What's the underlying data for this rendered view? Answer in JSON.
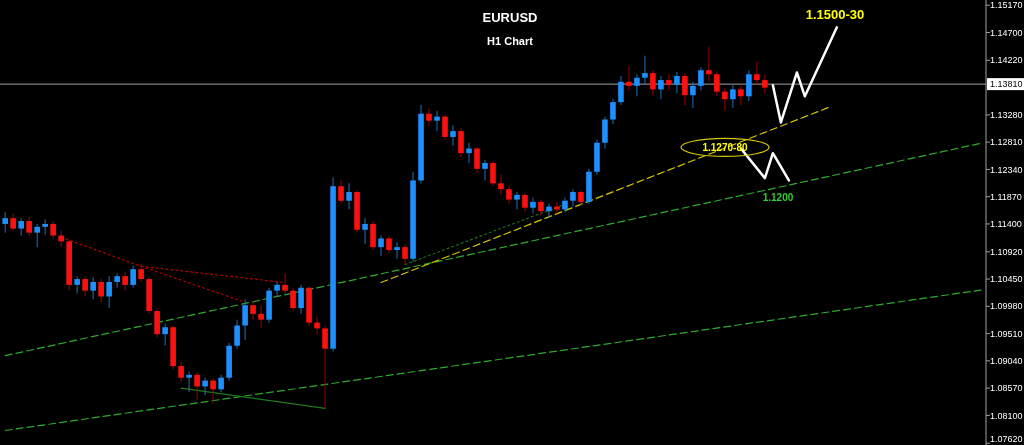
{
  "chart_data": {
    "type": "candlestick",
    "title": "EURUSD",
    "subtitle": "H1 Chart",
    "tick_labels": "y",
    "categories": [
      null,
      null,
      null,
      null,
      null,
      null,
      null,
      null,
      null,
      null,
      null,
      null,
      null,
      null,
      null,
      null,
      null,
      null,
      null,
      null,
      null,
      null,
      null,
      null,
      null,
      null,
      null,
      null,
      null,
      null,
      null,
      null,
      null,
      null,
      null,
      null,
      null,
      null,
      null,
      null,
      null,
      null,
      null,
      null,
      null,
      null,
      null,
      null,
      null,
      null,
      null,
      null,
      null,
      null,
      null,
      null,
      null,
      null,
      null,
      null,
      null,
      null,
      null,
      null,
      null,
      null,
      null,
      null,
      null,
      null,
      null,
      null,
      null,
      null,
      null,
      null,
      null,
      null,
      null,
      null,
      null,
      null,
      null,
      null,
      null,
      null,
      null,
      null,
      null,
      null,
      null,
      null,
      null,
      null,
      null,
      null,
      null,
      null,
      null,
      null,
      null,
      null,
      null,
      null,
      null,
      null,
      null,
      null,
      null,
      null,
      null,
      null,
      null,
      null,
      null,
      null,
      null,
      null,
      null,
      null,
      null,
      null,
      null
    ],
    "ohlc": [
      [
        1.114,
        1.116,
        1.1125,
        1.115
      ],
      [
        1.115,
        1.1158,
        1.1128,
        1.1132
      ],
      [
        1.1132,
        1.115,
        1.112,
        1.1145
      ],
      [
        1.1145,
        1.1152,
        1.1118,
        1.1125
      ],
      [
        1.1125,
        1.114,
        1.11,
        1.1135
      ],
      [
        1.1135,
        1.1148,
        1.1122,
        1.114
      ],
      [
        1.114,
        1.1145,
        1.1115,
        1.112
      ],
      [
        1.112,
        1.1128,
        1.11,
        1.111
      ],
      [
        1.111,
        1.1112,
        1.1025,
        1.1035
      ],
      [
        1.1035,
        1.105,
        1.102,
        1.1045
      ],
      [
        1.1045,
        1.105,
        1.1015,
        1.1025
      ],
      [
        1.1025,
        1.1048,
        1.101,
        1.104
      ],
      [
        1.104,
        1.1045,
        1.1005,
        1.1015
      ],
      [
        1.1015,
        1.105,
        1.0995,
        1.104
      ],
      [
        1.104,
        1.1055,
        1.103,
        1.105
      ],
      [
        1.105,
        1.1058,
        1.1025,
        1.1035
      ],
      [
        1.1035,
        1.1068,
        1.103,
        1.1062
      ],
      [
        1.1062,
        1.1072,
        1.104,
        1.1045
      ],
      [
        1.1045,
        1.1048,
        1.0985,
        1.099
      ],
      [
        1.099,
        1.0995,
        1.0945,
        1.095
      ],
      [
        1.095,
        1.0968,
        1.093,
        1.0962
      ],
      [
        1.0962,
        1.0965,
        1.089,
        1.0895
      ],
      [
        1.0895,
        1.0902,
        1.0868,
        1.0875
      ],
      [
        1.0875,
        1.0885,
        1.085,
        1.088
      ],
      [
        1.088,
        1.0884,
        1.0836,
        1.086
      ],
      [
        1.086,
        1.0875,
        1.0845,
        1.087
      ],
      [
        1.087,
        1.0874,
        1.083,
        1.0855
      ],
      [
        1.0855,
        1.088,
        1.085,
        1.0875
      ],
      [
        1.0875,
        1.0935,
        1.087,
        1.093
      ],
      [
        1.093,
        1.0975,
        1.0925,
        1.0965
      ],
      [
        1.0965,
        1.101,
        1.094,
        1.1
      ],
      [
        1.1,
        1.1008,
        1.0975,
        1.0985
      ],
      [
        1.0985,
        1.1,
        1.096,
        1.0975
      ],
      [
        1.0975,
        1.103,
        1.097,
        1.1025
      ],
      [
        1.1025,
        1.104,
        1.1015,
        1.1035
      ],
      [
        1.1035,
        1.1055,
        1.102,
        1.1025
      ],
      [
        1.1025,
        1.103,
        1.099,
        1.0995
      ],
      [
        1.0995,
        1.1035,
        1.0985,
        1.103
      ],
      [
        1.103,
        1.1032,
        1.0965,
        1.097
      ],
      [
        1.097,
        1.098,
        1.095,
        1.096
      ],
      [
        1.096,
        1.0965,
        1.0822,
        1.0925
      ],
      [
        1.0925,
        1.122,
        1.092,
        1.1205
      ],
      [
        1.1205,
        1.1215,
        1.1175,
        1.118
      ],
      [
        1.118,
        1.121,
        1.1165,
        1.1195
      ],
      [
        1.1195,
        1.1198,
        1.1125,
        1.113
      ],
      [
        1.113,
        1.115,
        1.1105,
        1.114
      ],
      [
        1.114,
        1.1145,
        1.1095,
        1.11
      ],
      [
        1.11,
        1.112,
        1.1085,
        1.1115
      ],
      [
        1.1115,
        1.112,
        1.109,
        1.1095
      ],
      [
        1.1095,
        1.1108,
        1.108,
        1.11
      ],
      [
        1.11,
        1.1105,
        1.107,
        1.108
      ],
      [
        1.108,
        1.123,
        1.1075,
        1.1215
      ],
      [
        1.1215,
        1.1345,
        1.121,
        1.133
      ],
      [
        1.133,
        1.134,
        1.131,
        1.1318
      ],
      [
        1.1318,
        1.1335,
        1.13,
        1.1325
      ],
      [
        1.1325,
        1.1328,
        1.1285,
        1.129
      ],
      [
        1.129,
        1.131,
        1.1275,
        1.13
      ],
      [
        1.13,
        1.1305,
        1.1255,
        1.1262
      ],
      [
        1.1262,
        1.128,
        1.1245,
        1.127
      ],
      [
        1.127,
        1.1272,
        1.1228,
        1.1235
      ],
      [
        1.1235,
        1.125,
        1.1215,
        1.1245
      ],
      [
        1.1245,
        1.1248,
        1.1205,
        1.121
      ],
      [
        1.121,
        1.1225,
        1.119,
        1.12
      ],
      [
        1.12,
        1.1205,
        1.1175,
        1.1182
      ],
      [
        1.1182,
        1.1195,
        1.1165,
        1.119
      ],
      [
        1.119,
        1.1193,
        1.116,
        1.1168
      ],
      [
        1.1168,
        1.1185,
        1.1158,
        1.1178
      ],
      [
        1.1178,
        1.1182,
        1.1155,
        1.1162
      ],
      [
        1.1162,
        1.1175,
        1.115,
        1.117
      ],
      [
        1.117,
        1.1178,
        1.1158,
        1.1165
      ],
      [
        1.1165,
        1.1185,
        1.116,
        1.118
      ],
      [
        1.118,
        1.12,
        1.117,
        1.1195
      ],
      [
        1.1195,
        1.1198,
        1.1172,
        1.1178
      ],
      [
        1.1178,
        1.1235,
        1.1175,
        1.123
      ],
      [
        1.123,
        1.1285,
        1.1225,
        1.128
      ],
      [
        1.128,
        1.1325,
        1.127,
        1.132
      ],
      [
        1.132,
        1.1355,
        1.1312,
        1.135
      ],
      [
        1.135,
        1.1395,
        1.1345,
        1.1385
      ],
      [
        1.1385,
        1.1412,
        1.137,
        1.1378
      ],
      [
        1.1378,
        1.1398,
        1.136,
        1.1392
      ],
      [
        1.1392,
        1.143,
        1.138,
        1.14
      ],
      [
        1.14,
        1.1405,
        1.1362,
        1.1372
      ],
      [
        1.1372,
        1.1395,
        1.1355,
        1.1388
      ],
      [
        1.1388,
        1.1398,
        1.137,
        1.138
      ],
      [
        1.138,
        1.1402,
        1.1365,
        1.1395
      ],
      [
        1.1395,
        1.14,
        1.1345,
        1.1362
      ],
      [
        1.1362,
        1.1385,
        1.134,
        1.1378
      ],
      [
        1.1378,
        1.141,
        1.137,
        1.1405
      ],
      [
        1.1405,
        1.1445,
        1.1385,
        1.1398
      ],
      [
        1.1398,
        1.1402,
        1.136,
        1.1368
      ],
      [
        1.1368,
        1.1375,
        1.1335,
        1.1355
      ],
      [
        1.1355,
        1.138,
        1.134,
        1.1372
      ],
      [
        1.1372,
        1.1378,
        1.1345,
        1.136
      ],
      [
        1.136,
        1.1405,
        1.1352,
        1.1398
      ],
      [
        1.1398,
        1.142,
        1.138,
        1.1388
      ],
      [
        1.1388,
        1.1398,
        1.1365,
        1.1375
      ],
      null,
      null,
      null,
      null,
      null,
      null,
      null,
      null,
      null,
      null,
      null,
      null,
      null,
      null,
      null,
      null,
      null,
      null,
      null,
      null,
      null,
      null,
      null,
      null,
      null,
      null,
      null
    ],
    "series": [
      {
        "type": "line",
        "color": "#2eaa2e",
        "line_style": "dashed",
        "values": [
          1.0913,
          null,
          null,
          null,
          null,
          null,
          null,
          null,
          null,
          null,
          null,
          null,
          null,
          null,
          null,
          null,
          null,
          null,
          null,
          null,
          null,
          null,
          null,
          null,
          null,
          null,
          null,
          null,
          null,
          null,
          null,
          null,
          null,
          null,
          null,
          null,
          null,
          null,
          null,
          null,
          null,
          null,
          null,
          null,
          null,
          null,
          null,
          null,
          null,
          null,
          null,
          null,
          null,
          null,
          null,
          null,
          null,
          null,
          null,
          null,
          null,
          null,
          null,
          null,
          null,
          null,
          null,
          null,
          null,
          null,
          null,
          null,
          null,
          null,
          null,
          null,
          null,
          null,
          null,
          null,
          null,
          null,
          null,
          null,
          null,
          null,
          null,
          null,
          null,
          null,
          null,
          null,
          null,
          null,
          null,
          null,
          null,
          null,
          null,
          null,
          null,
          null,
          null,
          null,
          null,
          null,
          null,
          null,
          null,
          null,
          null,
          null,
          null,
          null,
          null,
          null,
          null,
          null,
          null,
          null,
          null,
          null,
          1.1279
        ]
      },
      {
        "type": "line",
        "color": "#2eaa2e",
        "line_style": "dashed",
        "values": [
          1.0784,
          null,
          null,
          null,
          null,
          null,
          null,
          null,
          null,
          null,
          null,
          null,
          null,
          null,
          null,
          null,
          null,
          null,
          null,
          null,
          null,
          null,
          null,
          null,
          null,
          null,
          null,
          null,
          null,
          null,
          null,
          null,
          null,
          null,
          null,
          null,
          null,
          null,
          null,
          null,
          null,
          null,
          null,
          null,
          null,
          null,
          null,
          null,
          null,
          null,
          null,
          null,
          null,
          null,
          null,
          null,
          null,
          null,
          null,
          null,
          null,
          null,
          null,
          null,
          null,
          null,
          null,
          null,
          null,
          null,
          null,
          null,
          null,
          null,
          null,
          null,
          null,
          null,
          null,
          null,
          null,
          null,
          null,
          null,
          null,
          null,
          null,
          null,
          null,
          null,
          null,
          null,
          null,
          null,
          null,
          null,
          null,
          null,
          null,
          null,
          null,
          null,
          null,
          null,
          null,
          null,
          null,
          null,
          null,
          null,
          null,
          null,
          null,
          null,
          null,
          null,
          null,
          null,
          null,
          null,
          null,
          null,
          1.1026
        ]
      },
      {
        "type": "line",
        "color": "#d8c800",
        "line_style": "dashed",
        "values": [
          null,
          null,
          null,
          null,
          null,
          null,
          null,
          null,
          null,
          null,
          null,
          null,
          null,
          null,
          null,
          null,
          null,
          null,
          null,
          null,
          null,
          null,
          null,
          null,
          null,
          null,
          null,
          null,
          null,
          null,
          null,
          null,
          null,
          null,
          null,
          null,
          null,
          null,
          null,
          null,
          null,
          null,
          null,
          null,
          null,
          null,
          null,
          1.1039,
          null,
          null,
          null,
          null,
          null,
          null,
          null,
          null,
          null,
          null,
          null,
          null,
          null,
          null,
          null,
          null,
          null,
          null,
          null,
          null,
          null,
          null,
          null,
          null,
          null,
          null,
          null,
          null,
          null,
          null,
          null,
          null,
          null,
          null,
          null,
          null,
          null,
          null,
          null,
          null,
          null,
          null,
          null,
          null,
          null,
          null,
          null,
          null,
          null,
          null,
          null,
          null,
          null,
          null,
          null,
          1.1341,
          null,
          null,
          null,
          null,
          null,
          null,
          null,
          null,
          null,
          null,
          null,
          null,
          null,
          null,
          null,
          null,
          null,
          null,
          null
        ]
      },
      {
        "type": "line",
        "color": "#1f6a1f",
        "line_style": "dotted",
        "values": [
          null,
          null,
          null,
          null,
          null,
          null,
          null,
          null,
          null,
          null,
          null,
          null,
          null,
          null,
          null,
          null,
          null,
          null,
          null,
          null,
          null,
          null,
          null,
          null,
          null,
          null,
          null,
          null,
          null,
          null,
          null,
          null,
          null,
          null,
          null,
          null,
          null,
          null,
          null,
          null,
          null,
          null,
          null,
          null,
          null,
          null,
          null,
          null,
          null,
          null,
          1.107,
          null,
          null,
          null,
          null,
          null,
          null,
          null,
          null,
          null,
          null,
          null,
          null,
          null,
          null,
          null,
          null,
          null,
          null,
          null,
          1.1174,
          null,
          null,
          null,
          null,
          null,
          null,
          null,
          null,
          null,
          null,
          null,
          null,
          null,
          null,
          null,
          null,
          null,
          null,
          null,
          null,
          null,
          null,
          null,
          null,
          null,
          null,
          null,
          null,
          null,
          null,
          null,
          null,
          null,
          null,
          null,
          null,
          null,
          null,
          null,
          null,
          null,
          null,
          null,
          null,
          null,
          null,
          null,
          null,
          null,
          null,
          null,
          null
        ]
      },
      {
        "type": "line",
        "color": "#b00000",
        "line_style": "dotted",
        "values": [
          null,
          null,
          null,
          null,
          null,
          null,
          null,
          1.1117,
          null,
          null,
          null,
          null,
          null,
          null,
          null,
          null,
          null,
          1.1067,
          null,
          null,
          null,
          null,
          null,
          null,
          null,
          null,
          null,
          null,
          null,
          null,
          null,
          null,
          null,
          null,
          null,
          1.1039,
          null,
          null,
          null,
          null,
          null,
          null,
          null,
          null,
          null,
          null,
          null,
          null,
          null,
          null,
          null,
          null,
          null,
          null,
          null,
          null,
          null,
          null,
          null,
          null,
          null,
          null,
          null,
          null,
          null,
          null,
          null,
          null,
          null,
          null,
          null,
          null,
          null,
          null,
          null,
          null,
          null,
          null,
          null,
          null,
          null,
          null,
          null,
          null,
          null,
          null,
          null,
          null,
          null,
          null,
          null,
          null,
          null,
          null,
          null,
          null,
          null,
          null,
          null,
          null,
          null,
          null,
          null,
          null,
          null,
          null,
          null,
          null,
          null,
          null,
          null,
          null,
          null,
          null,
          null,
          null,
          null,
          null,
          null,
          null,
          null,
          null,
          null
        ]
      },
      {
        "type": "line",
        "color": "#b00000",
        "line_style": "dotted",
        "values": [
          null,
          null,
          null,
          null,
          null,
          null,
          null,
          null,
          null,
          null,
          null,
          null,
          null,
          null,
          null,
          null,
          null,
          1.1067,
          null,
          null,
          null,
          null,
          null,
          null,
          null,
          null,
          null,
          null,
          null,
          null,
          1.1005,
          null,
          null,
          null,
          null,
          null,
          null,
          null,
          null,
          null,
          null,
          null,
          null,
          null,
          null,
          null,
          null,
          null,
          null,
          null,
          null,
          null,
          null,
          null,
          null,
          null,
          null,
          null,
          null,
          null,
          null,
          null,
          null,
          null,
          null,
          null,
          null,
          null,
          null,
          null,
          null,
          null,
          null,
          null,
          null,
          null,
          null,
          null,
          null,
          null,
          null,
          null,
          null,
          null,
          null,
          null,
          null,
          null,
          null,
          null,
          null,
          null,
          null,
          null,
          null,
          null,
          null,
          null,
          null,
          null,
          null,
          null,
          null,
          null,
          null,
          null,
          null,
          null,
          null,
          null,
          null,
          null,
          null,
          null,
          null,
          null,
          null,
          null,
          null,
          null,
          null,
          null,
          null
        ]
      },
      {
        "type": "line",
        "color": "#1f7a1f",
        "line_style": "solid",
        "values": [
          null,
          null,
          null,
          null,
          null,
          null,
          null,
          null,
          null,
          null,
          null,
          null,
          null,
          null,
          null,
          null,
          null,
          null,
          null,
          null,
          null,
          null,
          1.0857,
          null,
          null,
          null,
          null,
          null,
          null,
          null,
          null,
          null,
          null,
          null,
          null,
          null,
          null,
          null,
          null,
          null,
          1.0822,
          null,
          null,
          null,
          null,
          null,
          null,
          null,
          null,
          null,
          null,
          null,
          null,
          null,
          null,
          null,
          null,
          null,
          null,
          null,
          null,
          null,
          null,
          null,
          null,
          null,
          null,
          null,
          null,
          null,
          null,
          null,
          null,
          null,
          null,
          null,
          null,
          null,
          null,
          null,
          null,
          null,
          null,
          null,
          null,
          null,
          null,
          null,
          null,
          null,
          null,
          null,
          null,
          null,
          null,
          null,
          null,
          null,
          null,
          null,
          null,
          null,
          null,
          null,
          null,
          null,
          null,
          null,
          null,
          null,
          null,
          null,
          null,
          null,
          null,
          null,
          null,
          null,
          null,
          null,
          null,
          null,
          null
        ]
      },
      {
        "type": "line",
        "color": "#ffffff",
        "line_style": "solid",
        "values": [
          null,
          null,
          null,
          null,
          null,
          null,
          null,
          null,
          null,
          null,
          null,
          null,
          null,
          null,
          null,
          null,
          null,
          null,
          null,
          null,
          null,
          null,
          null,
          null,
          null,
          null,
          null,
          null,
          null,
          null,
          null,
          null,
          null,
          null,
          null,
          null,
          null,
          null,
          null,
          null,
          null,
          null,
          null,
          null,
          null,
          null,
          null,
          null,
          null,
          null,
          null,
          null,
          null,
          null,
          null,
          null,
          null,
          null,
          null,
          null,
          null,
          null,
          null,
          null,
          null,
          null,
          null,
          null,
          null,
          null,
          null,
          null,
          null,
          null,
          null,
          null,
          null,
          null,
          null,
          null,
          null,
          null,
          null,
          null,
          null,
          null,
          null,
          null,
          null,
          null,
          null,
          null,
          null,
          null,
          null,
          null,
          1.1379,
          1.1315,
          null,
          1.1401,
          1.136,
          null,
          null,
          null,
          1.1479,
          null,
          null,
          null,
          null,
          null,
          null,
          null,
          null,
          null,
          null,
          null,
          null,
          null,
          null,
          null,
          null,
          null,
          null
        ]
      },
      {
        "type": "line",
        "color": "#ffffff",
        "line_style": "solid",
        "values": [
          null,
          null,
          null,
          null,
          null,
          null,
          null,
          null,
          null,
          null,
          null,
          null,
          null,
          null,
          null,
          null,
          null,
          null,
          null,
          null,
          null,
          null,
          null,
          null,
          null,
          null,
          null,
          null,
          null,
          null,
          null,
          null,
          null,
          null,
          null,
          null,
          null,
          null,
          null,
          null,
          null,
          null,
          null,
          null,
          null,
          null,
          null,
          null,
          null,
          null,
          null,
          null,
          null,
          null,
          null,
          null,
          null,
          null,
          null,
          null,
          null,
          null,
          null,
          null,
          null,
          null,
          null,
          null,
          null,
          null,
          null,
          null,
          null,
          null,
          null,
          null,
          null,
          null,
          null,
          null,
          null,
          null,
          null,
          null,
          null,
          null,
          null,
          null,
          null,
          null,
          null,
          null,
          1.127,
          null,
          null,
          1.1219,
          1.1262,
          null,
          1.1215,
          null,
          null,
          null,
          null,
          null,
          null,
          null,
          null,
          null,
          null,
          null,
          null,
          null,
          null,
          null,
          null,
          null,
          null,
          null,
          null,
          null,
          null,
          null,
          null
        ]
      }
    ],
    "ylim": [
      1.0759,
      1.1526
    ],
    "yticks": [
      {
        "value": 1.1517,
        "label": "1.15170"
      },
      {
        "value": 1.147,
        "label": "1.14700"
      },
      {
        "value": 1.1422,
        "label": "1.14220"
      },
      {
        "value": 1.1328,
        "label": "1.13280"
      },
      {
        "value": 1.1281,
        "label": "1.12810"
      },
      {
        "value": 1.1234,
        "label": "1.12340"
      },
      {
        "value": 1.1187,
        "label": "1.11870"
      },
      {
        "value": 1.114,
        "label": "1.11400"
      },
      {
        "value": 1.1092,
        "label": "1.10920"
      },
      {
        "value": 1.1045,
        "label": "1.10450"
      },
      {
        "value": 1.0998,
        "label": "1.09980"
      },
      {
        "value": 1.0951,
        "label": "1.09510"
      },
      {
        "value": 1.0904,
        "label": "1.09040"
      },
      {
        "value": 1.0857,
        "label": "1.08570"
      },
      {
        "value": 1.081,
        "label": "1.08100"
      },
      {
        "value": 1.0762,
        "label": "1.07620"
      }
    ],
    "ref_lines": [
      {
        "axis": "y",
        "value": 1.1381,
        "label": "1.13810",
        "color": "#a0a0a0"
      }
    ],
    "annotations": [
      "1.1500-30",
      {
        "text": "1.1270-80",
        "y": 1.1272
      },
      {
        "text": "1.1200",
        "y": 1.12
      }
    ]
  }
}
